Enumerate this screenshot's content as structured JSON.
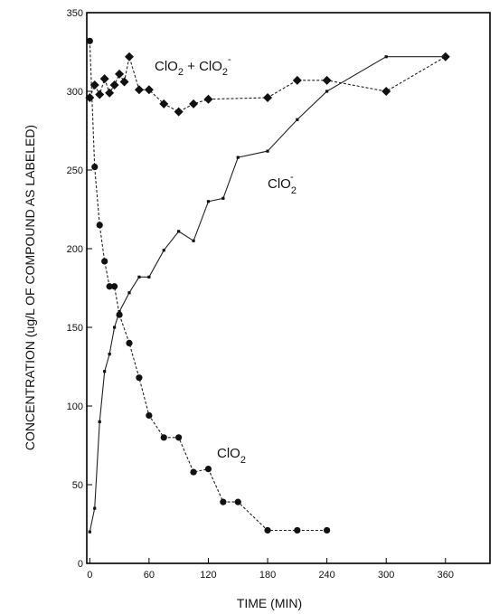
{
  "chart_data": {
    "type": "line",
    "xlabel": "TIME (MIN)",
    "ylabel": "CONCENTRATION (ug/L OF COMPOUND AS LABELED)",
    "xlim": [
      -3,
      405
    ],
    "ylim": [
      0,
      350
    ],
    "xticks": [
      0,
      60,
      120,
      180,
      240,
      300,
      360
    ],
    "xtick_labels": [
      "0",
      "60",
      "120",
      "180",
      "240",
      "300",
      "360"
    ],
    "yticks": [
      0,
      50,
      100,
      150,
      200,
      250,
      300,
      350
    ],
    "ytick_labels": [
      "0",
      "50",
      "100",
      "150",
      "200",
      "250",
      "300",
      "350"
    ],
    "grid": false,
    "series": [
      {
        "name": "ClO2 + ClO2-",
        "label": {
          "base1": "ClO",
          "sub1": "2",
          "plus": " + ",
          "base2": "ClO",
          "sub2": "2",
          "sup2": "-"
        },
        "marker": "diamond",
        "x": [
          0,
          5,
          10,
          15,
          20,
          25,
          30,
          35,
          40,
          50,
          60,
          75,
          90,
          105,
          120,
          180,
          210,
          240,
          300,
          360
        ],
        "y": [
          296,
          304,
          298,
          308,
          299,
          304,
          311,
          306,
          322,
          301,
          301,
          292,
          287,
          292,
          295,
          296,
          307,
          307,
          300,
          322
        ]
      },
      {
        "name": "ClO2-",
        "label": {
          "base": "ClO",
          "sub": "2",
          "sup": "-"
        },
        "marker": "dot",
        "x": [
          0,
          5,
          10,
          15,
          20,
          25,
          30,
          40,
          50,
          60,
          75,
          90,
          105,
          120,
          135,
          150,
          180,
          210,
          240,
          300,
          360
        ],
        "y": [
          20,
          35,
          90,
          122,
          133,
          150,
          160,
          172,
          182,
          182,
          199,
          211,
          205,
          230,
          232,
          258,
          262,
          282,
          300,
          322,
          322
        ]
      },
      {
        "name": "ClO2",
        "label": {
          "base": "ClO",
          "sub": "2"
        },
        "marker": "circle",
        "x": [
          0,
          5,
          10,
          15,
          20,
          25,
          30,
          40,
          50,
          60,
          75,
          90,
          105,
          120,
          135,
          150,
          180,
          210,
          240
        ],
        "y": [
          332,
          252,
          215,
          192,
          176,
          176,
          158,
          140,
          118,
          94,
          80,
          80,
          58,
          60,
          39,
          39,
          21,
          21,
          21
        ]
      }
    ]
  }
}
